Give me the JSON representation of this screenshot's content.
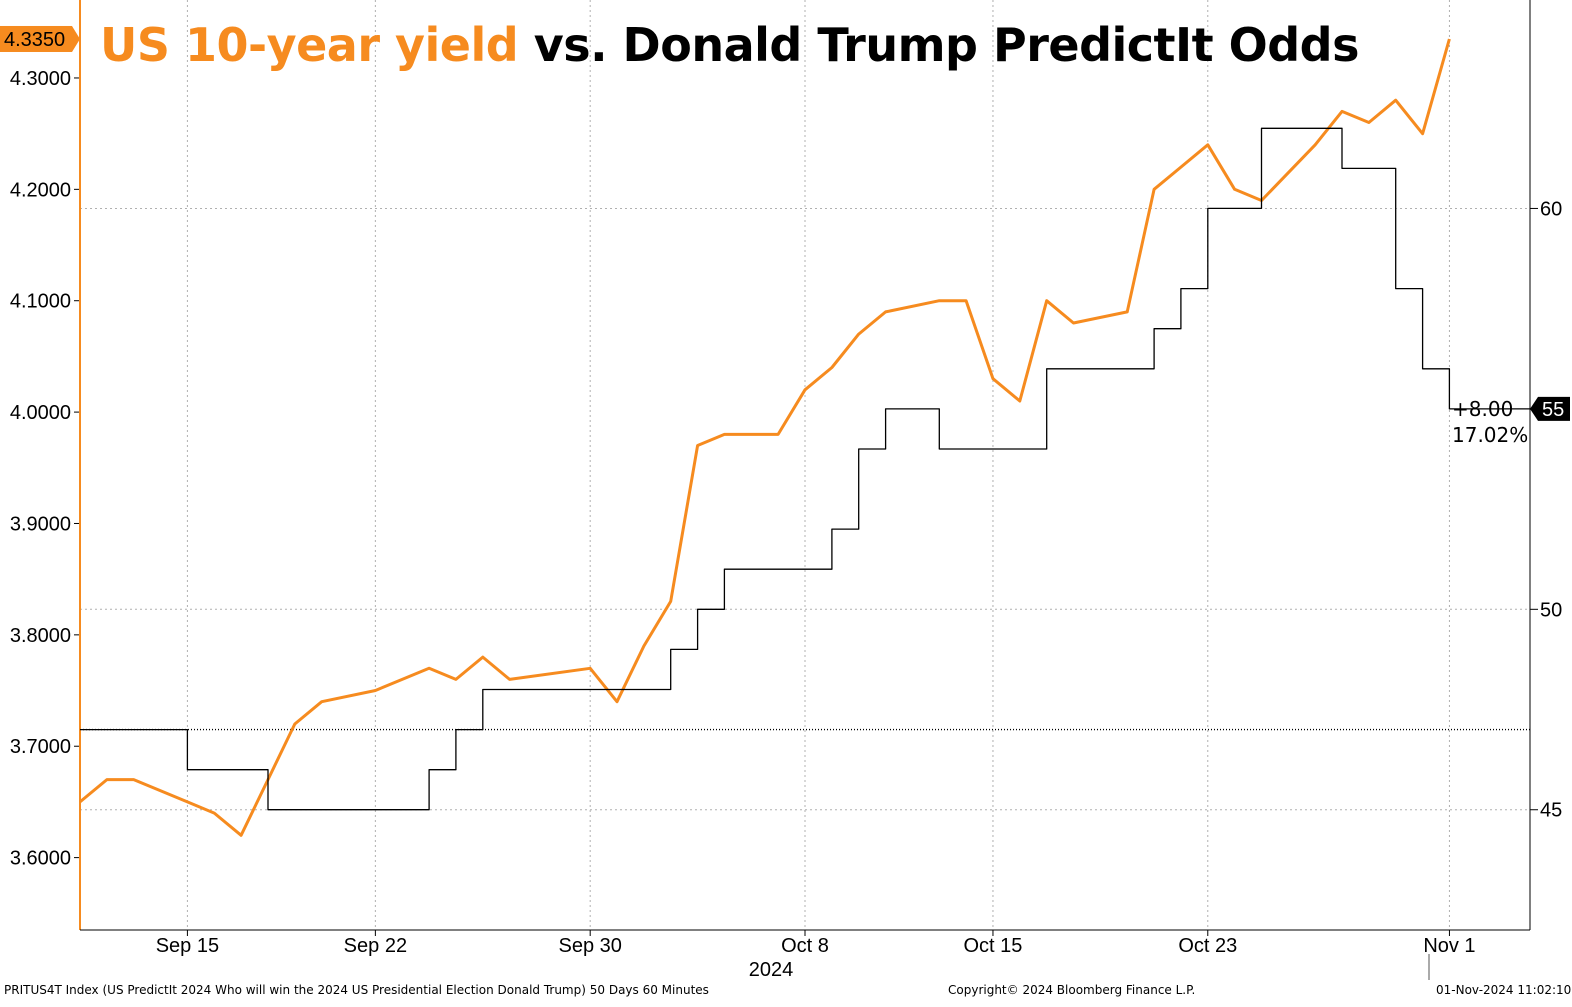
{
  "title": {
    "part1": "US 10-year yield",
    "part2": " vs. Donald Trump PredictIt Odds"
  },
  "colors": {
    "yield": "#f68b1f",
    "odds": "#000000",
    "grid": "#b0b0b0"
  },
  "annotation": {
    "change": "+8.00",
    "pct": "17.02%"
  },
  "footer": {
    "left": "PRITUS4T Index (US PredictIt 2024 Who will win the 2024 US Presidential Election Donald Trump) 50 Days 60 Minutes",
    "center": "Copyright© 2024 Bloomberg Finance L.P.",
    "right": "01-Nov-2024 11:02:10"
  },
  "chart_data": {
    "type": "line",
    "title": "US 10-year yield vs. Donald Trump PredictIt Odds",
    "x_tick_labels": [
      "Sep 15",
      "Sep 22",
      "Sep 30",
      "Oct 8",
      "Oct 15",
      "Oct 23",
      "Nov 1"
    ],
    "x_year_label": "2024",
    "x_range": [
      "Sep 11",
      "Nov 4"
    ],
    "left_axis": {
      "ticks": [
        "3.6000",
        "3.7000",
        "3.8000",
        "3.9000",
        "4.0000",
        "4.1000",
        "4.2000",
        "4.3000"
      ],
      "range": [
        3.535,
        4.37
      ],
      "last_value_label": "4.3350"
    },
    "right_axis": {
      "ticks": [
        "45",
        "50",
        "60"
      ],
      "range": [
        42.0,
        65.2
      ],
      "last_value_label": "55"
    },
    "grid": true,
    "series": [
      {
        "name": "US 10-year yield",
        "axis": "left",
        "x": [
          "Sep 11",
          "Sep 12",
          "Sep 13",
          "Sep 15",
          "Sep 16",
          "Sep 17",
          "Sep 18",
          "Sep 19",
          "Sep 20",
          "Sep 22",
          "Sep 23",
          "Sep 24",
          "Sep 25",
          "Sep 26",
          "Sep 27",
          "Sep 30",
          "Oct 1",
          "Oct 2",
          "Oct 3",
          "Oct 4",
          "Oct 5",
          "Oct 7",
          "Oct 8",
          "Oct 9",
          "Oct 10",
          "Oct 11",
          "Oct 13",
          "Oct 14",
          "Oct 15",
          "Oct 16",
          "Oct 17",
          "Oct 18",
          "Oct 20",
          "Oct 21",
          "Oct 22",
          "Oct 23",
          "Oct 24",
          "Oct 25",
          "Oct 27",
          "Oct 28",
          "Oct 29",
          "Oct 30",
          "Oct 31",
          "Nov 1"
        ],
        "values": [
          3.65,
          3.67,
          3.67,
          3.65,
          3.64,
          3.62,
          3.67,
          3.72,
          3.74,
          3.75,
          3.76,
          3.77,
          3.76,
          3.78,
          3.76,
          3.77,
          3.74,
          3.79,
          3.83,
          3.97,
          3.98,
          3.98,
          4.02,
          4.04,
          4.07,
          4.09,
          4.1,
          4.1,
          4.03,
          4.01,
          4.1,
          4.08,
          4.09,
          4.2,
          4.22,
          4.24,
          4.2,
          4.19,
          4.24,
          4.27,
          4.26,
          4.28,
          4.25,
          4.335
        ]
      },
      {
        "name": "Donald Trump PredictIt Odds",
        "axis": "right",
        "x": [
          "Sep 11",
          "Sep 12",
          "Sep 13",
          "Sep 15",
          "Sep 16",
          "Sep 17",
          "Sep 18",
          "Sep 19",
          "Sep 20",
          "Sep 22",
          "Sep 23",
          "Sep 24",
          "Sep 25",
          "Sep 26",
          "Sep 27",
          "Sep 30",
          "Oct 1",
          "Oct 2",
          "Oct 3",
          "Oct 4",
          "Oct 5",
          "Oct 7",
          "Oct 8",
          "Oct 9",
          "Oct 10",
          "Oct 11",
          "Oct 13",
          "Oct 14",
          "Oct 15",
          "Oct 16",
          "Oct 17",
          "Oct 18",
          "Oct 20",
          "Oct 21",
          "Oct 22",
          "Oct 23",
          "Oct 24",
          "Oct 25",
          "Oct 27",
          "Oct 28",
          "Oct 29",
          "Oct 30",
          "Oct 31",
          "Nov 1"
        ],
        "values": [
          47,
          47,
          47,
          46,
          46,
          46,
          45,
          45,
          45,
          45,
          45,
          46,
          47,
          48,
          48,
          48,
          48,
          48,
          49,
          50,
          51,
          51,
          51,
          52,
          54,
          55,
          54,
          54,
          54,
          54,
          56,
          56,
          56,
          57,
          58,
          60,
          60,
          62,
          62,
          61,
          61,
          58,
          56,
          55
        ]
      }
    ],
    "reference_line": {
      "axis": "right",
      "value": 47.0,
      "style": "dotted"
    }
  }
}
